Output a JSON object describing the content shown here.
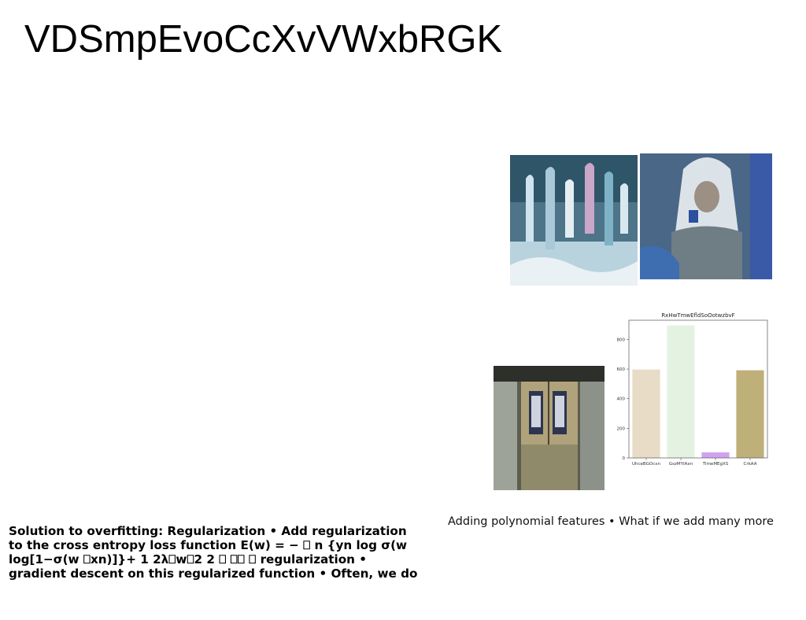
{
  "slide": {
    "title": "VDSmpEvoCcXvVWxbRGK",
    "caption_right": "Adding polynomial features • What if we add many more",
    "body_lines": [
      "Solution to overfitting: Regularization • Add regularization",
      "to the cross entropy loss function E(w) = − ⎕ n {yn log σ(w",
      "log[1−σ(w ⎕xn)]}+ 1 2λ⎕w⎕2 2 ⎕ ⎕⎕ ⎕ regularization •",
      "gradient descent on this regularized function • Often, we do"
    ]
  },
  "images": [
    {
      "name": "painting-figures",
      "depicts": "abstract painting of figures in blue and white"
    },
    {
      "name": "woman-with-cup",
      "depicts": "elderly woman in headscarf holding a cup"
    },
    {
      "name": "old-doorway",
      "depicts": "weathered doorway with vertical signs"
    }
  ],
  "chart_data": {
    "type": "bar",
    "title": "RxHwTmwEfldSoOotwzbvF",
    "categories": [
      "UhceBGOcxn",
      "GszMYIAxn",
      "TlmeMEgXS",
      "CrkAA"
    ],
    "values": [
      597,
      895,
      38,
      592
    ],
    "colors": [
      "#e8dcc6",
      "#e4f2e2",
      "#cfa3ee",
      "#bfb07a"
    ],
    "ylim": [
      0,
      930
    ],
    "yticks": [
      0,
      200,
      400,
      600,
      800
    ],
    "xlabel": "",
    "ylabel": "",
    "grid": false,
    "legend": "none"
  }
}
